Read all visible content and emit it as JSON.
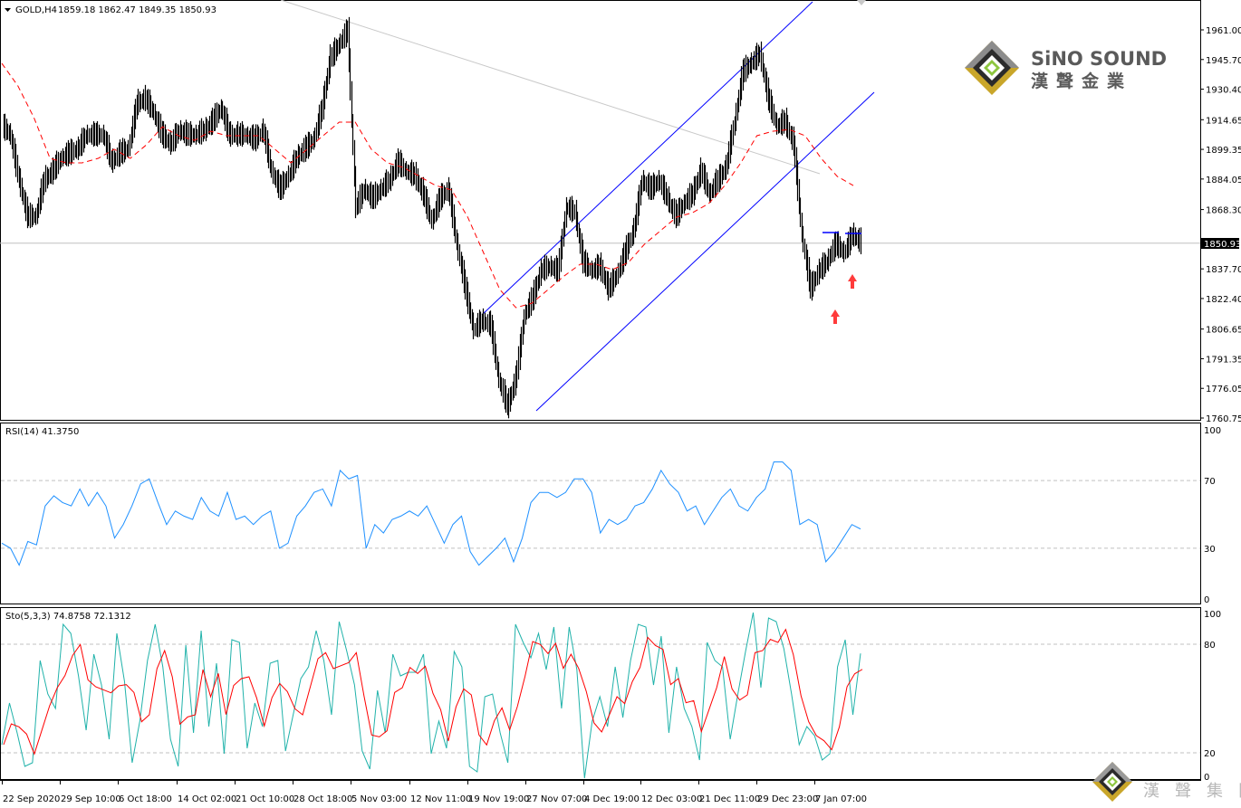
{
  "header": {
    "symbol": "GOLD,H4",
    "ohlc": "1859.18 1862.47 1849.35 1850.93",
    "menu_icon": "triangle-down-icon"
  },
  "current_price_label": "1850.93",
  "time_axis": {
    "labels": [
      "22 Sep 2020",
      "29 Sep 10:00",
      "6 Oct 18:00",
      "14 Oct 02:00",
      "21 Oct 10:00",
      "28 Oct 18:00",
      "5 Nov 03:00",
      "12 Nov 11:00",
      "19 Nov 19:00",
      "27 Nov 07:00",
      "4 Dec 19:00",
      "12 Dec 03:00",
      "21 Dec 11:00",
      "29 Dec 23:00",
      "7 Jan 07:00"
    ]
  },
  "logo": {
    "brand_en": "SiNO SOUND",
    "brand_zh": "漢聲金業",
    "watermark_zh": "漢聲集團"
  },
  "colors": {
    "bars": "#000000",
    "ma": "#ff0000",
    "channel": "#0000ff",
    "trendline": "#c8c8c8",
    "rsi": "#1e90ff",
    "stoch_main": "#20b2aa",
    "stoch_signal": "#ff0000",
    "arrows": "#ff3b3b",
    "levels": "#c0c0c0"
  },
  "chart_data": [
    {
      "type": "bar",
      "pane": "price",
      "title": "GOLD,H4",
      "ylim": [
        1760.75,
        1961.0
      ],
      "y_tick_labels": [
        "1961.00",
        "1945.70",
        "1930.40",
        "1914.65",
        "1899.35",
        "1884.05",
        "1868.30",
        "1837.70",
        "1822.40",
        "1806.65",
        "1791.35",
        "1776.05",
        "1760.75"
      ],
      "grid": false,
      "close": [
        1911.0,
        1906.4,
        1883.0,
        1864.4,
        1864.4,
        1883.0,
        1887.7,
        1894.7,
        1897.0,
        1899.4,
        1906.4,
        1906.4,
        1906.4,
        1892.4,
        1897.0,
        1899.4,
        1922.7,
        1925.1,
        1918.0,
        1906.4,
        1901.7,
        1908.7,
        1906.4,
        1906.4,
        1908.7,
        1913.4,
        1920.4,
        1906.4,
        1906.4,
        1906.4,
        1904.0,
        1908.7,
        1887.7,
        1878.4,
        1885.4,
        1894.7,
        1899.4,
        1904.0,
        1920.4,
        1946.1,
        1953.1,
        1960.1,
        1869.0,
        1878.4,
        1873.7,
        1878.4,
        1883.0,
        1892.4,
        1887.7,
        1885.4,
        1876.0,
        1862.0,
        1873.7,
        1878.4,
        1850.4,
        1827.0,
        1806.0,
        1810.7,
        1808.3,
        1780.3,
        1766.3,
        1780.3,
        1813.0,
        1822.3,
        1836.4,
        1838.7,
        1836.4,
        1869.0,
        1866.7,
        1841.0,
        1836.4,
        1838.7,
        1827.0,
        1834.0,
        1845.7,
        1857.4,
        1883.0,
        1878.4,
        1883.0,
        1873.7,
        1864.4,
        1871.4,
        1876.0,
        1887.7,
        1876.0,
        1883.0,
        1890.0,
        1913.4,
        1939.1,
        1943.7,
        1948.4,
        1925.1,
        1911.0,
        1913.4,
        1901.7,
        1855.0,
        1827.0,
        1836.4,
        1841.0,
        1850.4,
        1845.7,
        1855.0,
        1850.93
      ],
      "ma_series": [
        1943.7,
        1932.1,
        1915.7,
        1894.7,
        1892.4,
        1892.4,
        1894.7,
        1899.4,
        1894.7,
        1901.7,
        1911.0,
        1906.4,
        1904.0,
        1908.7,
        1906.4,
        1906.4,
        1906.4,
        1899.4,
        1892.4,
        1899.4,
        1906.4,
        1913.4,
        1913.4,
        1899.4,
        1892.4,
        1890.0,
        1885.4,
        1880.7,
        1878.4,
        1864.4,
        1845.7,
        1827.0,
        1817.7,
        1820.0,
        1827.0,
        1834.0,
        1840.1,
        1840.1,
        1837.3,
        1841.0,
        1850.4,
        1857.4,
        1864.4,
        1866.7,
        1871.4,
        1880.7,
        1892.4,
        1906.4,
        1908.7,
        1909.6,
        1906.4,
        1894.7,
        1885.4,
        1880.7
      ]
    },
    {
      "type": "line",
      "pane": "rsi",
      "title": "RSI(14) 41.3750",
      "ylim": [
        0,
        100
      ],
      "y_tick_labels": [
        "100",
        "70",
        "30",
        "0"
      ],
      "levels": [
        70,
        30
      ],
      "series": [
        {
          "values": [
            33,
            30,
            20,
            34,
            32,
            55,
            61,
            57,
            55,
            65,
            55,
            63,
            55,
            36,
            44,
            55,
            68,
            71,
            57,
            44,
            52,
            49,
            47,
            60,
            52,
            49,
            63,
            47,
            49,
            44,
            49,
            52,
            30,
            33,
            49,
            55,
            63,
            65,
            55,
            76,
            71,
            73,
            30,
            44,
            39,
            47,
            49,
            52,
            49,
            55,
            44,
            33,
            44,
            49,
            28,
            20,
            25,
            30,
            36,
            22,
            36,
            57,
            63,
            63,
            60,
            63,
            71,
            71,
            63,
            39,
            47,
            44,
            47,
            55,
            57,
            65,
            76,
            68,
            63,
            52,
            55,
            44,
            52,
            60,
            65,
            55,
            52,
            60,
            65,
            81,
            81,
            76,
            44,
            47,
            44,
            22,
            28,
            36,
            44,
            41.375
          ]
        }
      ]
    },
    {
      "type": "line",
      "pane": "stochastic",
      "title": "Sto(5,3,3) 74.8758 72.1312",
      "ylim": [
        0,
        100
      ],
      "y_tick_labels": [
        "100",
        "80",
        "20",
        "0"
      ],
      "levels": [
        80,
        20
      ],
      "series": [
        {
          "values": [
            24.5,
            47.5,
            31,
            12.5,
            14.5,
            71,
            52.5,
            44.5,
            91,
            86,
            62.5,
            32.5,
            74.5,
            57.5,
            27.5,
            86,
            59.5,
            14.5,
            37.5,
            71,
            91,
            67.5,
            27.5,
            12.5,
            79.5,
            31,
            87.5,
            34.5,
            69.5,
            19.5,
            82.5,
            81,
            22.5,
            47.5,
            34.5,
            69.5,
            71,
            21,
            41,
            61,
            67.5,
            87.5,
            71,
            41,
            92.5,
            76,
            57.5,
            21,
            11,
            54.5,
            31,
            74.5,
            62.5,
            64.5,
            64.5,
            74.5,
            19.5,
            37.5,
            22.5,
            76,
            67.5,
            12.5,
            9.5,
            51,
            52.5,
            31,
            14.5,
            91,
            81,
            72.5,
            86,
            66,
            89.5,
            44.5,
            89.5,
            66,
            6,
            37.5,
            51,
            34.5,
            67.5,
            39.5,
            71,
            91,
            89.5,
            57.5,
            84.5,
            31,
            67.5,
            44.5,
            34.5,
            16,
            81,
            71,
            67.5,
            27.5,
            52.5,
            76,
            97.5,
            56,
            94.5,
            92.5,
            77.5,
            52.5,
            24.5,
            34.5,
            29.5,
            16,
            19.5,
            67.5,
            82.5,
            41,
            74.8758
          ]
        }
      ]
    }
  ]
}
